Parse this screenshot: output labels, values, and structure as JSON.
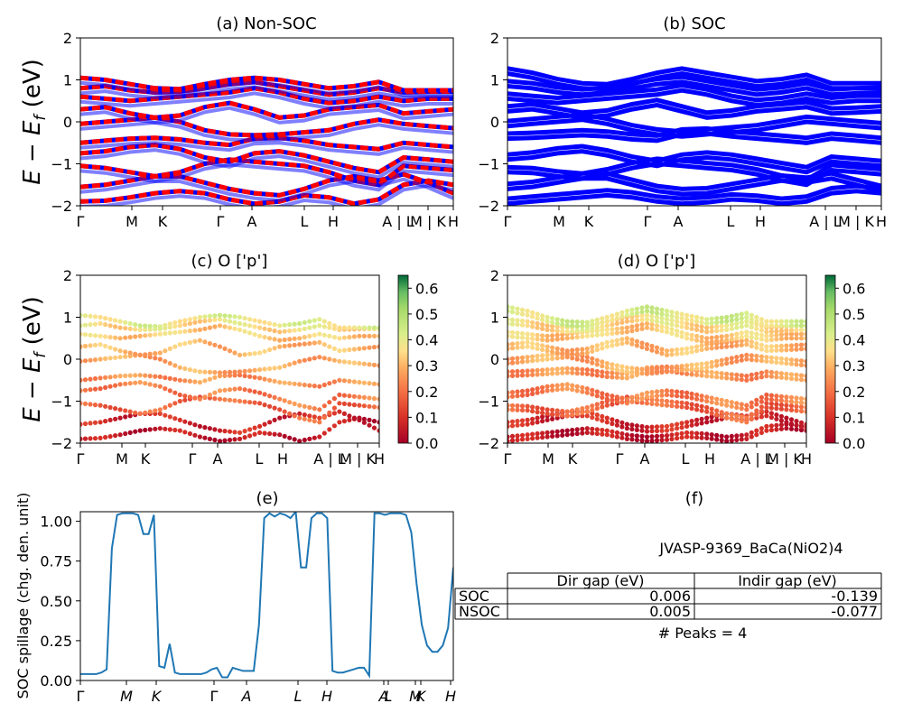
{
  "chart_data": [
    {
      "panel": "a",
      "type": "line",
      "title": "(a) Non-SOC",
      "ylabel": "E − E_f (eV)",
      "ylim": [
        -2,
        2
      ],
      "yticks": [
        "2",
        "1",
        "0",
        "−1",
        "−2"
      ],
      "kpath_labels": [
        "Γ",
        "M",
        "K",
        "Γ",
        "A",
        "L",
        "H",
        "A | L",
        "M | K",
        "H"
      ],
      "series": [
        {
          "color": "#ff0000",
          "style": "dashed-over-blue"
        }
      ],
      "bands": [
        [
          -1.9,
          -1.88,
          -1.8,
          -1.7,
          -1.65,
          -1.7,
          -1.85,
          -1.95,
          -1.9,
          -1.75,
          -1.8,
          -1.95,
          -1.85,
          -1.5,
          -1.4,
          -1.5
        ],
        [
          -1.55,
          -1.5,
          -1.4,
          -1.3,
          -1.3,
          -1.45,
          -1.6,
          -1.7,
          -1.75,
          -1.6,
          -1.4,
          -1.3,
          -1.4,
          -1.25,
          -1.45,
          -1.7
        ],
        [
          -1.05,
          -1.1,
          -1.2,
          -1.3,
          -1.2,
          -1.0,
          -0.9,
          -0.95,
          -1.0,
          -1.05,
          -1.2,
          -1.4,
          -1.5,
          -1.05,
          -1.1,
          -1.15
        ],
        [
          -0.75,
          -0.7,
          -0.6,
          -0.55,
          -0.65,
          -0.85,
          -0.95,
          -0.75,
          -0.7,
          -0.8,
          -0.95,
          -1.1,
          -1.2,
          -0.85,
          -0.9,
          -0.95
        ],
        [
          -0.5,
          -0.45,
          -0.4,
          -0.38,
          -0.42,
          -0.5,
          -0.55,
          -0.4,
          -0.38,
          -0.45,
          -0.55,
          -0.6,
          -0.65,
          -0.5,
          -0.55,
          -0.6
        ],
        [
          -0.05,
          0.0,
          0.05,
          0.1,
          0.0,
          -0.2,
          -0.3,
          -0.32,
          -0.3,
          -0.25,
          -0.2,
          -0.05,
          0.05,
          -0.05,
          -0.1,
          -0.15
        ],
        [
          0.3,
          0.35,
          0.2,
          0.1,
          0.15,
          0.35,
          0.45,
          0.3,
          0.1,
          0.15,
          0.3,
          0.35,
          0.4,
          0.2,
          0.25,
          0.3
        ],
        [
          0.6,
          0.55,
          0.5,
          0.55,
          0.6,
          0.65,
          0.7,
          0.8,
          0.7,
          0.55,
          0.45,
          0.5,
          0.6,
          0.5,
          0.55,
          0.55
        ],
        [
          0.8,
          0.85,
          0.75,
          0.7,
          0.72,
          0.8,
          0.9,
          0.95,
          0.85,
          0.75,
          0.65,
          0.7,
          0.8,
          0.7,
          0.72,
          0.72
        ],
        [
          1.05,
          1.0,
          0.9,
          0.8,
          0.78,
          0.9,
          1.0,
          1.05,
          1.0,
          0.9,
          0.8,
          0.85,
          0.95,
          0.75,
          0.75,
          0.75
        ]
      ]
    },
    {
      "panel": "b",
      "type": "line",
      "title": "(b) SOC",
      "ylim": [
        -2,
        2
      ],
      "yticks": [
        "2",
        "1",
        "0",
        "−1",
        "−2"
      ],
      "kpath_labels": [
        "Γ",
        "M",
        "K",
        "Γ",
        "A",
        "L",
        "H",
        "A | L",
        "M | K",
        "H"
      ],
      "series": [
        {
          "color": "#0000ff",
          "style": "solid"
        }
      ],
      "bands": [
        [
          -1.95,
          -1.9,
          -1.85,
          -1.8,
          -1.75,
          -1.8,
          -1.9,
          -1.95,
          -1.92,
          -1.85,
          -1.88,
          -1.95,
          -1.9,
          -1.7,
          -1.65,
          -1.7
        ],
        [
          -1.6,
          -1.55,
          -1.45,
          -1.35,
          -1.35,
          -1.5,
          -1.65,
          -1.72,
          -1.7,
          -1.6,
          -1.5,
          -1.4,
          -1.45,
          -1.35,
          -1.5,
          -1.65
        ],
        [
          -1.2,
          -1.22,
          -1.3,
          -1.35,
          -1.25,
          -1.1,
          -1.0,
          -1.05,
          -1.1,
          -1.15,
          -1.25,
          -1.4,
          -1.5,
          -1.15,
          -1.2,
          -1.25
        ],
        [
          -0.9,
          -0.85,
          -0.75,
          -0.7,
          -0.8,
          -0.95,
          -1.05,
          -0.9,
          -0.85,
          -0.9,
          -1.0,
          -1.1,
          -1.2,
          -0.95,
          -1.0,
          -1.05
        ],
        [
          -0.4,
          -0.38,
          -0.35,
          -0.32,
          -0.35,
          -0.42,
          -0.45,
          -0.3,
          -0.28,
          -0.35,
          -0.4,
          -0.45,
          -0.5,
          -0.4,
          -0.45,
          -0.5
        ],
        [
          -0.1,
          -0.05,
          0.0,
          0.05,
          -0.05,
          -0.2,
          -0.3,
          -0.35,
          -0.3,
          -0.25,
          -0.2,
          -0.1,
          0.0,
          -0.05,
          -0.1,
          -0.15
        ],
        [
          0.25,
          0.3,
          0.2,
          0.1,
          0.15,
          0.3,
          0.4,
          0.25,
          0.1,
          0.15,
          0.25,
          0.3,
          0.35,
          0.2,
          0.22,
          0.25
        ],
        [
          0.55,
          0.5,
          0.45,
          0.5,
          0.55,
          0.6,
          0.65,
          0.75,
          0.65,
          0.5,
          0.4,
          0.45,
          0.55,
          0.45,
          0.5,
          0.5
        ],
        [
          0.85,
          0.8,
          0.7,
          0.65,
          0.7,
          0.8,
          0.9,
          0.95,
          0.85,
          0.75,
          0.65,
          0.7,
          0.8,
          0.65,
          0.68,
          0.7
        ],
        [
          1.15,
          1.05,
          0.9,
          0.8,
          0.78,
          0.9,
          1.05,
          1.15,
          1.05,
          0.95,
          0.85,
          0.9,
          1.0,
          0.8,
          0.8,
          0.8
        ]
      ]
    },
    {
      "panel": "c",
      "type": "scatter",
      "title": "(c)  O ['p']",
      "ylabel": "E − E_f (eV)",
      "ylim": [
        -2,
        2
      ],
      "yticks": [
        "2",
        "1",
        "0",
        "−1",
        "−2"
      ],
      "kpath_labels": [
        "Γ",
        "M",
        "K",
        "Γ",
        "A",
        "L",
        "H",
        "A | L",
        "M | K",
        "H"
      ],
      "colorbar": {
        "min": 0.0,
        "max": 0.65,
        "ticks": [
          "0.6",
          "0.5",
          "0.4",
          "0.3",
          "0.2",
          "0.1",
          "0.0"
        ],
        "cmap": "RdYlGn"
      },
      "band_weights": [
        0.05,
        0.08,
        0.18,
        0.22,
        0.25,
        0.28,
        0.3,
        0.33,
        0.36,
        0.4
      ]
    },
    {
      "panel": "d",
      "type": "scatter",
      "title": "(d) O ['p']",
      "ylim": [
        -2,
        2
      ],
      "yticks": [
        "2",
        "1",
        "0",
        "−1",
        "−2"
      ],
      "kpath_labels": [
        "Γ",
        "M",
        "K",
        "Γ",
        "A",
        "L",
        "H",
        "A | L",
        "M | K",
        "H"
      ],
      "colorbar": {
        "min": 0.0,
        "max": 0.65,
        "ticks": [
          "0.6",
          "0.5",
          "0.4",
          "0.3",
          "0.2",
          "0.1",
          "0.0"
        ],
        "cmap": "RdYlGn"
      },
      "band_weights": [
        0.05,
        0.08,
        0.18,
        0.22,
        0.25,
        0.28,
        0.3,
        0.33,
        0.36,
        0.42
      ]
    },
    {
      "panel": "e",
      "type": "line",
      "title": "(e)",
      "ylabel": "SOC spillage (chg. den. unit)",
      "ylim": [
        0,
        1.06
      ],
      "yticks": [
        "1.00",
        "0.75",
        "0.50",
        "0.25",
        "0.00"
      ],
      "kpath_labels": [
        "Γ",
        "M",
        "K",
        "Γ",
        "A",
        "L",
        "H",
        "A",
        "L",
        "M",
        "K",
        "H"
      ],
      "series": [
        {
          "color": "#1f77b4",
          "values": [
            0.04,
            0.04,
            0.04,
            0.04,
            0.05,
            0.07,
            0.83,
            1.04,
            1.05,
            1.05,
            1.05,
            1.04,
            0.92,
            0.92,
            1.04,
            0.09,
            0.08,
            0.23,
            0.05,
            0.04,
            0.04,
            0.04,
            0.04,
            0.04,
            0.05,
            0.07,
            0.08,
            0.02,
            0.02,
            0.08,
            0.07,
            0.06,
            0.06,
            0.06,
            0.35,
            1.02,
            1.05,
            1.03,
            1.05,
            1.04,
            1.02,
            1.06,
            0.71,
            0.71,
            1.02,
            1.05,
            1.05,
            1.02,
            0.06,
            0.05,
            0.05,
            0.06,
            0.07,
            0.08,
            0.08,
            0.03,
            1.05,
            1.05,
            1.04,
            1.05,
            1.05,
            1.05,
            1.04,
            0.93,
            0.61,
            0.35,
            0.22,
            0.18,
            0.18,
            0.22,
            0.33,
            0.71
          ]
        }
      ]
    }
  ],
  "info": {
    "material": "JVASP-9369_BaCa(NiO2)4",
    "table_headers": [
      "Dir gap (eV)",
      "Indir gap (eV)"
    ],
    "rows": [
      {
        "label": "SOC",
        "dir": "0.006",
        "indir": "-0.139"
      },
      {
        "label": "NSOC",
        "dir": "0.005",
        "indir": "-0.077"
      }
    ],
    "peaks": "# Peaks = 4",
    "panel_f_title": "(f)"
  }
}
